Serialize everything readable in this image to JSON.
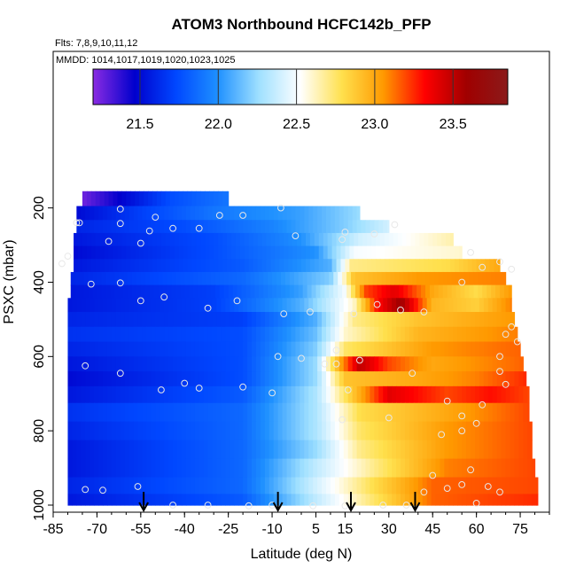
{
  "chart_data": {
    "type": "heatmap",
    "title": "ATOM3 Northbound HCFC142b_PFP",
    "flights_note": "Flts: 7,8,9,10,11,12",
    "dates_note": "MMDD: 1014,1017,1019,1020,1023,1025",
    "xlabel": "Latitude (deg N)",
    "ylabel": "PSXC (mbar)",
    "xlim": [
      -85,
      85
    ],
    "ylim": [
      1000,
      0
    ],
    "x_ticks": [
      -85,
      -70,
      -55,
      -40,
      -25,
      -10,
      5,
      15,
      30,
      45,
      60,
      75
    ],
    "x_tick_labels": [
      "-85",
      "-70",
      "-55",
      "-40",
      "-25",
      "-10",
      "5",
      "15",
      "30",
      "45",
      "60",
      "75"
    ],
    "y_ticks": [
      200,
      400,
      600,
      800,
      1000
    ],
    "y_tick_labels": [
      "200",
      "400",
      "600",
      "800",
      "1000"
    ],
    "colorbar": {
      "min": 21.2,
      "max": 23.85,
      "ticks": [
        21.5,
        22.0,
        22.5,
        23.0,
        23.5
      ],
      "tick_labels": [
        "21.5",
        "22.0",
        "22.5",
        "23.0",
        "23.5"
      ],
      "colors": [
        "#8a2be2",
        "#0000cd",
        "#0047ff",
        "#1e90ff",
        "#9fe0ff",
        "#ffffff",
        "#ffe04d",
        "#ff9900",
        "#ff0000",
        "#a00000",
        "#8b1a1a"
      ]
    },
    "grid": false,
    "rows": [
      {
        "p": 175,
        "xmin": -75,
        "xmax": -25,
        "knots": [
          [
            -75,
            21.25
          ],
          [
            -60,
            21.5
          ],
          [
            -45,
            21.75
          ],
          [
            -25,
            21.9
          ]
        ]
      },
      {
        "p": 215,
        "xmin": -77,
        "xmax": 20,
        "knots": [
          [
            -77,
            21.5
          ],
          [
            -55,
            21.7
          ],
          [
            -30,
            21.9
          ],
          [
            0,
            22.05
          ],
          [
            20,
            22.25
          ]
        ]
      },
      {
        "p": 250,
        "xmin": -77,
        "xmax": 30,
        "knots": [
          [
            -77,
            21.6
          ],
          [
            -40,
            21.75
          ],
          [
            -10,
            21.95
          ],
          [
            15,
            22.2
          ],
          [
            30,
            22.4
          ]
        ]
      },
      {
        "p": 285,
        "xmin": -78,
        "xmax": 52,
        "knots": [
          [
            -78,
            21.55
          ],
          [
            -30,
            21.75
          ],
          [
            0,
            22.0
          ],
          [
            20,
            22.4
          ],
          [
            52,
            22.65
          ]
        ]
      },
      {
        "p": 320,
        "xmin": -78,
        "xmax": 55,
        "knots": [
          [
            -78,
            21.5
          ],
          [
            -30,
            21.75
          ],
          [
            5,
            22.0
          ],
          [
            18,
            22.5
          ],
          [
            55,
            22.6
          ]
        ]
      },
      {
        "p": 355,
        "xmin": -78,
        "xmax": 68,
        "knots": [
          [
            -78,
            21.55
          ],
          [
            -20,
            21.8
          ],
          [
            10,
            22.1
          ],
          [
            17,
            22.7
          ],
          [
            50,
            22.8
          ],
          [
            68,
            23.0
          ]
        ]
      },
      {
        "p": 390,
        "xmin": -79,
        "xmax": 70,
        "knots": [
          [
            -79,
            21.6
          ],
          [
            -20,
            21.85
          ],
          [
            10,
            22.2
          ],
          [
            18,
            22.9
          ],
          [
            40,
            23.05
          ],
          [
            70,
            23.1
          ]
        ]
      },
      {
        "p": 425,
        "xmin": -79,
        "xmax": 72,
        "knots": [
          [
            -79,
            21.55
          ],
          [
            -30,
            21.7
          ],
          [
            0,
            22.05
          ],
          [
            15,
            22.5
          ],
          [
            22,
            23.2
          ],
          [
            32,
            23.4
          ],
          [
            45,
            23.0
          ],
          [
            60,
            22.8
          ],
          [
            72,
            23.05
          ]
        ]
      },
      {
        "p": 460,
        "xmin": -80,
        "xmax": 72,
        "knots": [
          [
            -80,
            21.55
          ],
          [
            -30,
            21.7
          ],
          [
            0,
            22.1
          ],
          [
            18,
            22.6
          ],
          [
            26,
            23.3
          ],
          [
            34,
            23.6
          ],
          [
            45,
            22.95
          ],
          [
            60,
            22.85
          ],
          [
            72,
            23.1
          ]
        ]
      },
      {
        "p": 500,
        "xmin": -80,
        "xmax": 73,
        "knots": [
          [
            -80,
            21.6
          ],
          [
            -20,
            21.7
          ],
          [
            5,
            22.1
          ],
          [
            18,
            22.7
          ],
          [
            40,
            22.9
          ],
          [
            73,
            23.05
          ]
        ]
      },
      {
        "p": 540,
        "xmin": -80,
        "xmax": 74,
        "knots": [
          [
            -80,
            21.65
          ],
          [
            -20,
            21.75
          ],
          [
            5,
            22.15
          ],
          [
            15,
            22.6
          ],
          [
            40,
            22.95
          ],
          [
            74,
            23.1
          ]
        ]
      },
      {
        "p": 580,
        "xmin": -80,
        "xmax": 75,
        "knots": [
          [
            -80,
            21.6
          ],
          [
            -20,
            21.75
          ],
          [
            5,
            22.2
          ],
          [
            15,
            22.75
          ],
          [
            45,
            23.05
          ],
          [
            75,
            23.15
          ]
        ]
      },
      {
        "p": 620,
        "xmin": -80,
        "xmax": 76,
        "knots": [
          [
            -80,
            21.55
          ],
          [
            -20,
            21.75
          ],
          [
            5,
            22.25
          ],
          [
            12,
            22.9
          ],
          [
            20,
            23.5
          ],
          [
            30,
            23.2
          ],
          [
            45,
            23.0
          ],
          [
            76,
            23.15
          ]
        ]
      },
      {
        "p": 660,
        "xmin": -80,
        "xmax": 77,
        "knots": [
          [
            -80,
            21.5
          ],
          [
            -20,
            21.75
          ],
          [
            5,
            22.25
          ],
          [
            15,
            22.9
          ],
          [
            40,
            23.0
          ],
          [
            60,
            23.1
          ],
          [
            77,
            23.25
          ]
        ]
      },
      {
        "p": 700,
        "xmin": -80,
        "xmax": 78,
        "knots": [
          [
            -80,
            21.55
          ],
          [
            -20,
            21.8
          ],
          [
            5,
            22.3
          ],
          [
            18,
            22.9
          ],
          [
            30,
            23.4
          ],
          [
            50,
            23.2
          ],
          [
            65,
            23.3
          ],
          [
            78,
            23.2
          ]
        ]
      },
      {
        "p": 750,
        "xmin": -80,
        "xmax": 78,
        "knots": [
          [
            -80,
            21.65
          ],
          [
            -20,
            21.85
          ],
          [
            5,
            22.3
          ],
          [
            20,
            22.8
          ],
          [
            50,
            23.0
          ],
          [
            78,
            23.2
          ]
        ]
      },
      {
        "p": 800,
        "xmin": -80,
        "xmax": 79,
        "knots": [
          [
            -80,
            21.6
          ],
          [
            -20,
            21.85
          ],
          [
            5,
            22.3
          ],
          [
            20,
            22.75
          ],
          [
            50,
            23.05
          ],
          [
            79,
            23.2
          ]
        ]
      },
      {
        "p": 850,
        "xmin": -80,
        "xmax": 79,
        "knots": [
          [
            -80,
            21.55
          ],
          [
            -20,
            21.85
          ],
          [
            5,
            22.25
          ],
          [
            20,
            22.7
          ],
          [
            50,
            23.05
          ],
          [
            79,
            23.2
          ]
        ]
      },
      {
        "p": 900,
        "xmin": -80,
        "xmax": 80,
        "knots": [
          [
            -80,
            21.55
          ],
          [
            -20,
            21.85
          ],
          [
            5,
            22.35
          ],
          [
            25,
            22.7
          ],
          [
            50,
            23.1
          ],
          [
            80,
            23.2
          ]
        ]
      },
      {
        "p": 950,
        "xmin": -80,
        "xmax": 81,
        "knots": [
          [
            -80,
            21.6
          ],
          [
            -20,
            21.85
          ],
          [
            5,
            22.4
          ],
          [
            25,
            22.8
          ],
          [
            45,
            23.15
          ],
          [
            81,
            23.2
          ]
        ]
      },
      {
        "p": 990,
        "xmin": -80,
        "xmax": 81,
        "knots": [
          [
            -80,
            21.55
          ],
          [
            -20,
            21.8
          ],
          [
            5,
            22.35
          ],
          [
            25,
            22.75
          ],
          [
            45,
            23.15
          ],
          [
            81,
            23.25
          ]
        ]
      }
    ],
    "samples": [
      [
        -62,
        203
      ],
      [
        -50,
        225
      ],
      [
        -28,
        220
      ],
      [
        -20,
        220
      ],
      [
        -7,
        200
      ],
      [
        -77,
        240
      ],
      [
        -62,
        242
      ],
      [
        -52,
        262
      ],
      [
        -44,
        255
      ],
      [
        -35,
        255
      ],
      [
        -82,
        350
      ],
      [
        -76,
        240
      ],
      [
        -66,
        290
      ],
      [
        -55,
        295
      ],
      [
        -2,
        275
      ],
      [
        15,
        265
      ],
      [
        25,
        270
      ],
      [
        32,
        245
      ],
      [
        14,
        285
      ],
      [
        -80,
        330
      ],
      [
        -72,
        405
      ],
      [
        -62,
        402
      ],
      [
        -47,
        440
      ],
      [
        -55,
        450
      ],
      [
        -32,
        470
      ],
      [
        -22,
        450
      ],
      [
        -6,
        485
      ],
      [
        3,
        480
      ],
      [
        18,
        485
      ],
      [
        26,
        460
      ],
      [
        34,
        475
      ],
      [
        42,
        480
      ],
      [
        58,
        320
      ],
      [
        62,
        360
      ],
      [
        68,
        345
      ],
      [
        72,
        365
      ],
      [
        55,
        400
      ],
      [
        -74,
        625
      ],
      [
        -62,
        645
      ],
      [
        -40,
        672
      ],
      [
        -48,
        690
      ],
      [
        -35,
        685
      ],
      [
        -20,
        682
      ],
      [
        -10,
        698
      ],
      [
        12,
        620
      ],
      [
        8,
        620
      ],
      [
        16,
        690
      ],
      [
        14,
        770
      ],
      [
        30,
        765
      ],
      [
        48,
        810
      ],
      [
        55,
        800
      ],
      [
        60,
        780
      ],
      [
        68,
        600
      ],
      [
        70,
        540
      ],
      [
        72,
        520
      ],
      [
        74,
        560
      ],
      [
        68,
        640
      ],
      [
        70,
        675
      ],
      [
        -8,
        600
      ],
      [
        0,
        605
      ],
      [
        12,
        583
      ],
      [
        20,
        610
      ],
      [
        38,
        645
      ],
      [
        50,
        720
      ],
      [
        62,
        730
      ],
      [
        55,
        760
      ],
      [
        45,
        920
      ],
      [
        55,
        945
      ],
      [
        64,
        950
      ],
      [
        60,
        995
      ],
      [
        -74,
        958
      ],
      [
        -68,
        960
      ],
      [
        -56,
        950
      ],
      [
        -44,
        1000
      ],
      [
        -32,
        1000
      ],
      [
        -18,
        1002
      ],
      [
        -10,
        1000
      ],
      [
        4,
        1002
      ],
      [
        15,
        1002
      ],
      [
        28,
        1000
      ],
      [
        36,
        1000
      ],
      [
        42,
        965
      ],
      [
        50,
        955
      ],
      [
        58,
        905
      ],
      [
        68,
        965
      ]
    ],
    "arrows": [
      -54,
      -8,
      17,
      39
    ]
  }
}
